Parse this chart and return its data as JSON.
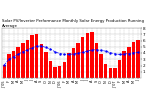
{
  "title": "Solar PV/Inverter Performance Monthly Solar Energy Production Running Average",
  "bar_color": "#FF0000",
  "line_color": "#0000FF",
  "background_color": "#FFFFFF",
  "grid_color": "#C0C0C0",
  "months": [
    "J '05",
    "F",
    "M",
    "A",
    "M",
    "J",
    "J",
    "A",
    "S",
    "O",
    "N",
    "D",
    "J '06",
    "F",
    "M",
    "A",
    "M",
    "J",
    "J",
    "A",
    "S",
    "O",
    "N",
    "D",
    "J '07",
    "F",
    "M",
    "A",
    "M",
    "J"
  ],
  "production": [
    210,
    390,
    430,
    500,
    560,
    610,
    690,
    710,
    550,
    410,
    270,
    175,
    185,
    260,
    400,
    480,
    565,
    650,
    720,
    735,
    555,
    385,
    225,
    155,
    165,
    290,
    425,
    495,
    575,
    615
  ],
  "running_avg": [
    210,
    300,
    343,
    383,
    418,
    450,
    484,
    511,
    511,
    490,
    462,
    418,
    392,
    378,
    378,
    385,
    397,
    413,
    431,
    450,
    452,
    444,
    428,
    405,
    385,
    378,
    383,
    392,
    403,
    412
  ],
  "ylim": [
    0,
    800
  ],
  "yticks": [
    100,
    200,
    300,
    400,
    500,
    600,
    700,
    800
  ],
  "ytick_labels": [
    "1",
    "2",
    "3",
    "4",
    "5",
    "6",
    "7",
    "8"
  ],
  "ylabel_fontsize": 3.0,
  "xlabel_fontsize": 2.5,
  "title_fontsize": 2.8,
  "figsize": [
    1.6,
    1.0
  ],
  "dpi": 100
}
